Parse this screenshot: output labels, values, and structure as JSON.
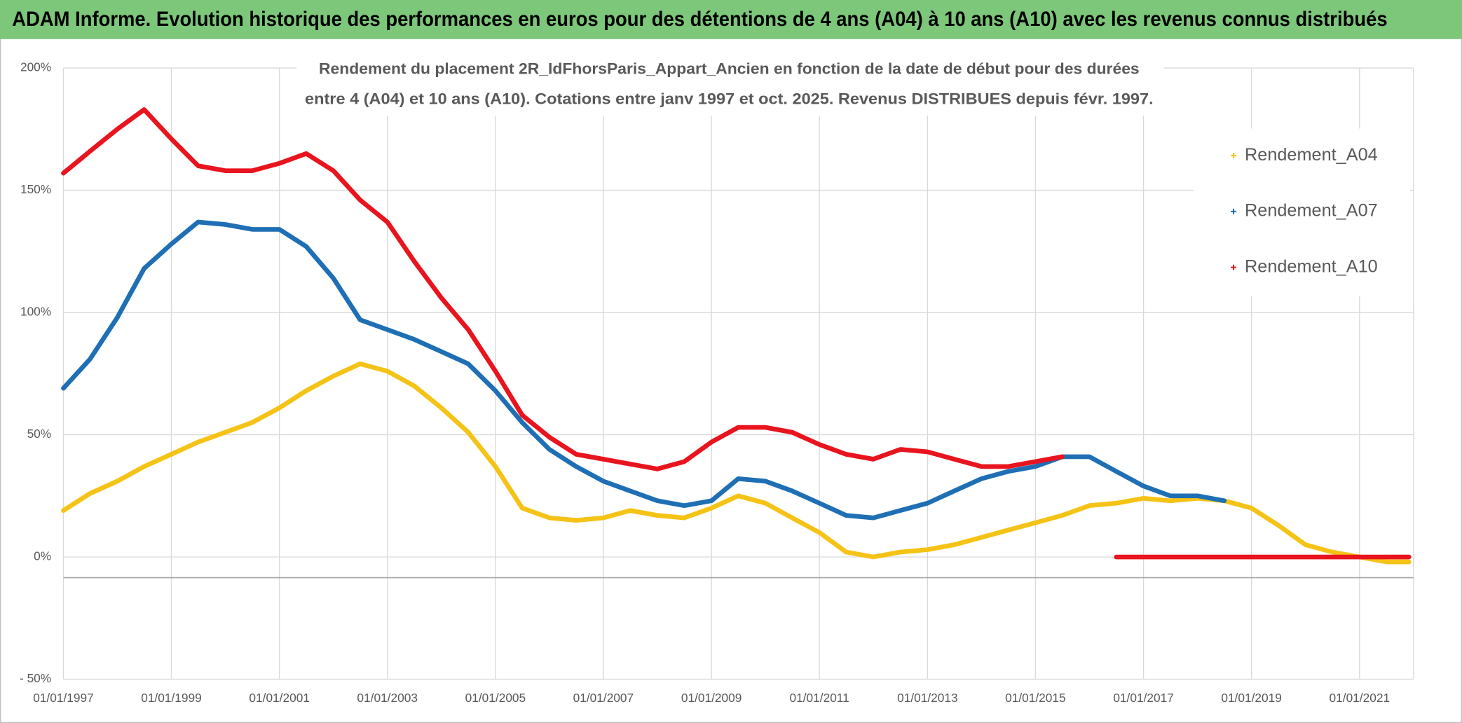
{
  "chart_data": {
    "type": "line",
    "title": "ADAM Informe. Evolution historique des performances en euros pour des détentions de 4 ans (A04) à 10 ans (A10) avec les revenus connus distribués",
    "subtitle": [
      "Rendement du placement 2R_IdFhorsParis_Appart_Ancien en fonction de la date de début pour des durées",
      "entre 4 (A04) et 10 ans (A10). Cotations entre janv 1997 et oct. 2025. Revenus DISTRIBUES depuis févr. 1997."
    ],
    "x": [
      "1997-01-01",
      "1997-07-01",
      "1998-01-01",
      "1998-07-01",
      "1999-01-01",
      "1999-07-01",
      "2000-01-01",
      "2000-07-01",
      "2001-01-01",
      "2001-07-01",
      "2002-01-01",
      "2002-07-01",
      "2003-01-01",
      "2003-07-01",
      "2004-01-01",
      "2004-07-01",
      "2005-01-01",
      "2005-07-01",
      "2006-01-01",
      "2006-07-01",
      "2007-01-01",
      "2007-07-01",
      "2008-01-01",
      "2008-07-01",
      "2009-01-01",
      "2009-07-01",
      "2010-01-01",
      "2010-07-01",
      "2011-01-01",
      "2011-07-01",
      "2012-01-01",
      "2012-07-01",
      "2013-01-01",
      "2013-07-01",
      "2014-01-01",
      "2014-07-01",
      "2015-01-01",
      "2015-07-01",
      "2016-01-01",
      "2016-07-01",
      "2017-01-01",
      "2017-07-01",
      "2018-01-01",
      "2018-07-01",
      "2019-01-01",
      "2019-07-01",
      "2020-01-01",
      "2020-07-01",
      "2021-01-01",
      "2021-07-01",
      "2021-12-01"
    ],
    "series": [
      {
        "name": "Rendement_A04",
        "color": "#f5c316",
        "values": [
          19,
          26,
          31,
          37,
          42,
          47,
          51,
          55,
          61,
          68,
          74,
          79,
          76,
          70,
          61,
          51,
          37,
          20,
          16,
          15,
          16,
          19,
          17,
          16,
          20,
          25,
          22,
          16,
          10,
          2,
          0,
          2,
          3,
          5,
          8,
          11,
          14,
          17,
          21,
          22,
          24,
          23,
          24,
          23,
          20,
          13,
          5,
          2,
          0,
          -2,
          -2
        ]
      },
      {
        "name": "Rendement_A07",
        "color": "#1f6fb4",
        "values": [
          69,
          81,
          98,
          118,
          128,
          137,
          136,
          134,
          134,
          127,
          114,
          97,
          93,
          89,
          84,
          79,
          68,
          55,
          44,
          37,
          31,
          27,
          23,
          21,
          23,
          32,
          31,
          27,
          22,
          17,
          16,
          19,
          22,
          27,
          32,
          35,
          37,
          41,
          41,
          35,
          29,
          25,
          25,
          23,
          null,
          null,
          null,
          null,
          null,
          null,
          null
        ]
      },
      {
        "name": "Rendement_A10",
        "color": "#e8141e",
        "values": [
          157,
          166,
          175,
          183,
          171,
          160,
          158,
          158,
          161,
          165,
          158,
          146,
          137,
          121,
          106,
          93,
          76,
          58,
          49,
          42,
          40,
          38,
          36,
          39,
          47,
          53,
          53,
          51,
          46,
          42,
          40,
          44,
          43,
          40,
          37,
          37,
          39,
          41,
          null,
          0,
          0,
          0,
          0,
          0,
          0,
          0,
          0,
          0,
          0,
          0,
          0
        ]
      }
    ],
    "xlim": [
      "1997-01-01",
      "2022-01-01"
    ],
    "xticks": [
      {
        "value": "1997-01-01",
        "label": "01/01/1997"
      },
      {
        "value": "1999-01-01",
        "label": "01/01/1999"
      },
      {
        "value": "2001-01-01",
        "label": "01/01/2001"
      },
      {
        "value": "2003-01-01",
        "label": "01/01/2003"
      },
      {
        "value": "2005-01-01",
        "label": "01/01/2005"
      },
      {
        "value": "2007-01-01",
        "label": "01/01/2007"
      },
      {
        "value": "2009-01-01",
        "label": "01/01/2009"
      },
      {
        "value": "2011-01-01",
        "label": "01/01/2011"
      },
      {
        "value": "2013-01-01",
        "label": "01/01/2013"
      },
      {
        "value": "2015-01-01",
        "label": "01/01/2015"
      },
      {
        "value": "2017-01-01",
        "label": "01/01/2017"
      },
      {
        "value": "2019-01-01",
        "label": "01/01/2019"
      },
      {
        "value": "2021-01-01",
        "label": "01/01/2021"
      }
    ],
    "ylim": [
      -50,
      200
    ],
    "yticks": [
      {
        "value": -50,
        "label": "- 50%"
      },
      {
        "value": 0,
        "label": "0%"
      },
      {
        "value": 50,
        "label": "50%"
      },
      {
        "value": 100,
        "label": "100%"
      },
      {
        "value": 150,
        "label": "150%"
      },
      {
        "value": 200,
        "label": "200%"
      }
    ],
    "grid": true,
    "legend": "right"
  }
}
